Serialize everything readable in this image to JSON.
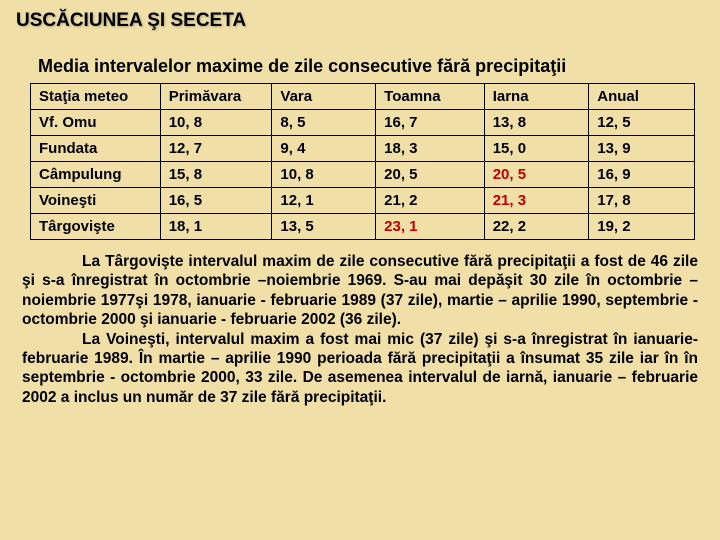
{
  "title": "USCĂCIUNEA ŞI SECETA",
  "subtitle": "Media intervalelor maxime de zile consecutive fără precipitaţii",
  "table": {
    "columns": [
      "Staţia meteo",
      "Primăvara",
      "Vara",
      "Toamna",
      "Iarna",
      "Anual"
    ],
    "rows": [
      {
        "cells": [
          "Vf. Omu",
          "10, 8",
          "8, 5",
          "16, 7",
          "13, 8",
          "12, 5"
        ],
        "red": []
      },
      {
        "cells": [
          "Fundata",
          "12, 7",
          "9, 4",
          "18, 3",
          "15, 0",
          "13, 9"
        ],
        "red": []
      },
      {
        "cells": [
          "Câmpulung",
          "15, 8",
          "10, 8",
          "20, 5",
          "20, 5",
          "16, 9"
        ],
        "red": [
          4
        ]
      },
      {
        "cells": [
          "Voineşti",
          "16, 5",
          "12, 1",
          "21, 2",
          "21, 3",
          "17, 8"
        ],
        "red": [
          4
        ]
      },
      {
        "cells": [
          "Târgovişte",
          "18, 1",
          "13, 5",
          "23, 1",
          "22, 2",
          "19, 2"
        ],
        "red": [
          3
        ]
      }
    ],
    "col_widths": [
      "120px",
      "100px",
      "100px",
      "100px",
      "100px",
      "100px"
    ]
  },
  "paragraph1": "La Târgovişte intervalul maxim de zile consecutive fără precipitaţii a fost de 46 zile şi s-a înregistrat în octombrie –noiembrie 1969. S-au mai depăşit 30 zile în octombrie – noiembrie 1977şi 1978, ianuarie - februarie 1989 (37 zile), martie – aprilie 1990, septembrie - octombrie 2000 şi ianuarie - februarie 2002 (36 zile).",
  "paragraph2": "La Voineşti, intervalul maxim a fost mai mic (37 zile) şi s-a înregistrat în ianuarie-februarie 1989. În martie – aprilie 1990 perioada fără precipitaţii a însumat 35 zile iar în în septembrie - octombrie 2000, 33 zile. De asemenea intervalul de iarnă, ianuarie – februarie 2002 a inclus un număr de 37 zile fără precipitaţii.",
  "colors": {
    "background": "#f0e0a8",
    "text": "#000000",
    "highlight": "#c00000",
    "border": "#000000"
  },
  "fonts": {
    "title_size": 19,
    "subtitle_size": 18,
    "table_size": 15,
    "para_size": 15.5
  }
}
